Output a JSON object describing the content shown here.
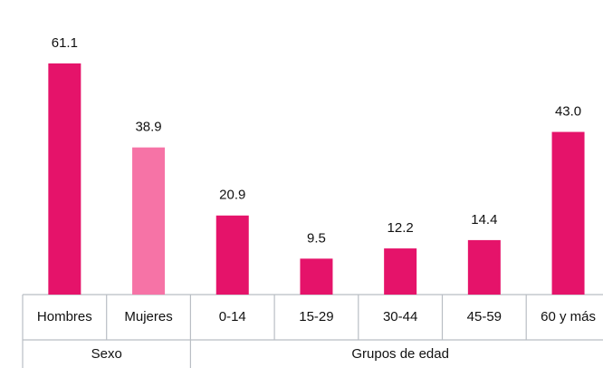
{
  "chart_data": {
    "type": "bar",
    "categories": [
      "Hombres",
      "Mujeres",
      "0-14",
      "15-29",
      "30-44",
      "45-59",
      "60 y más"
    ],
    "values": [
      61.1,
      38.9,
      20.9,
      9.5,
      12.2,
      14.4,
      43.0
    ],
    "value_labels": [
      "61.1",
      "38.9",
      "20.9",
      "9.5",
      "12.2",
      "14.4",
      "43.0"
    ],
    "colors": [
      "#e5136a",
      "#f673a6",
      "#e5136a",
      "#e5136a",
      "#e5136a",
      "#e5136a",
      "#e5136a"
    ],
    "groups": [
      {
        "label": "Sexo",
        "count": 2
      },
      {
        "label": "Grupos de edad",
        "count": 5
      }
    ]
  }
}
